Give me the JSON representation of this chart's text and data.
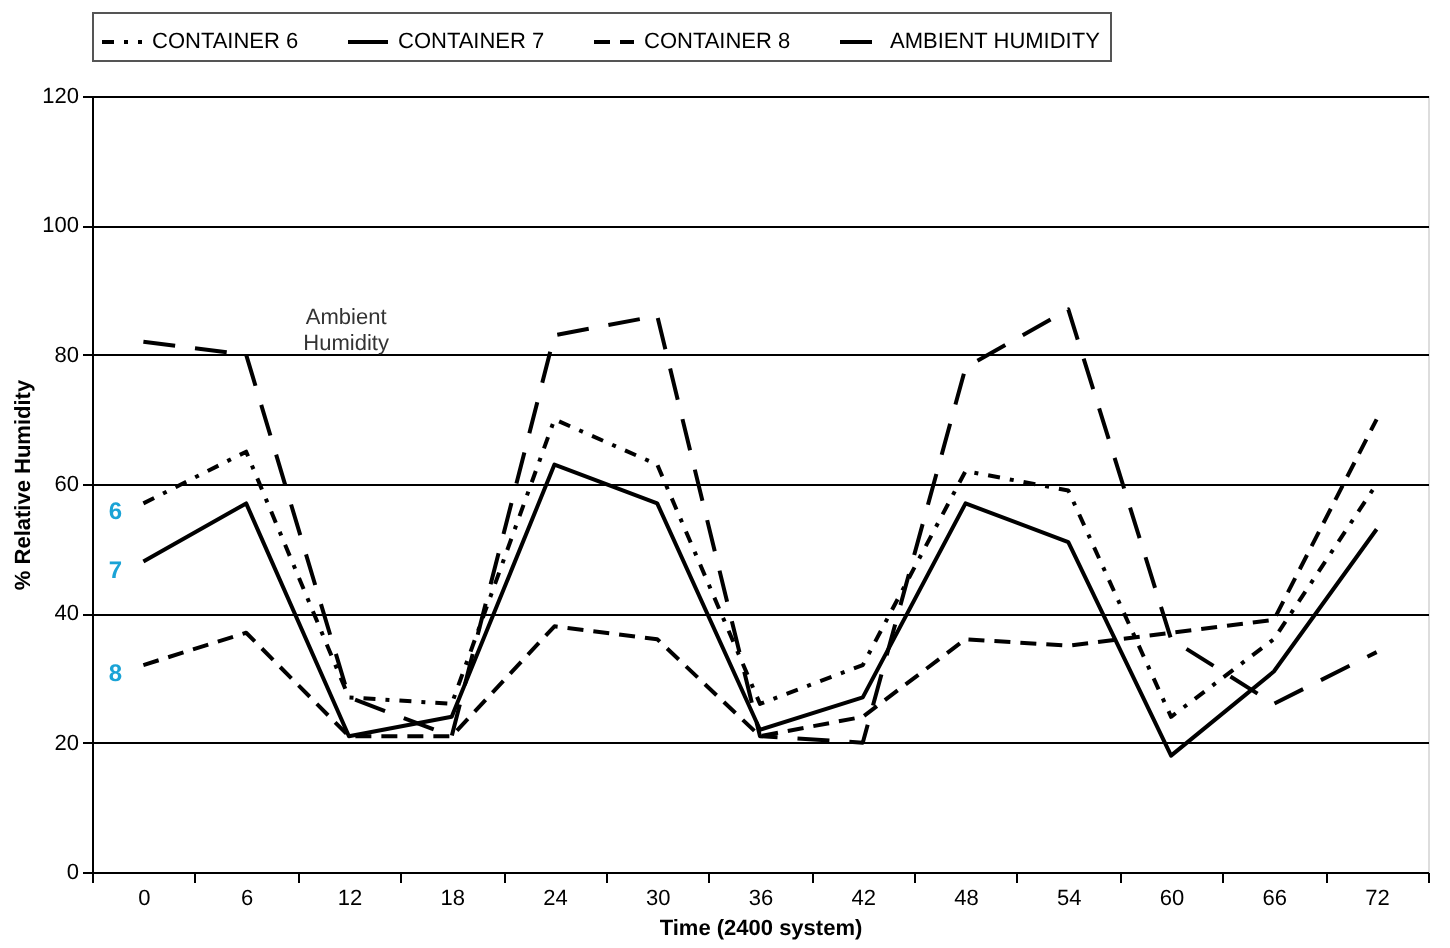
{
  "chart_data": {
    "type": "line",
    "xlabel": "Time (2400 system)",
    "ylabel": "% Relative Humidity",
    "categories": [
      "0",
      "6",
      "12",
      "18",
      "24",
      "30",
      "36",
      "42",
      "48",
      "54",
      "60",
      "66",
      "72"
    ],
    "series": [
      {
        "name": "CONTAINER 6",
        "color": "#000000",
        "line_style": "dotted",
        "values": [
          57,
          65,
          27,
          26,
          70,
          63,
          26,
          32,
          62,
          59,
          24,
          36,
          60
        ]
      },
      {
        "name": "CONTAINER 7",
        "color": "#000000",
        "line_style": "solid",
        "values": [
          48,
          57,
          21,
          24,
          63,
          57,
          22,
          27,
          57,
          51,
          18,
          31,
          53
        ]
      },
      {
        "name": "CONTAINER 8",
        "color": "#000000",
        "line_style": "dashed",
        "values": [
          32,
          37,
          21,
          21,
          38,
          36,
          21,
          24,
          36,
          35,
          37,
          39,
          70
        ]
      },
      {
        "name": "AMBIENT HUMIDITY",
        "color": "#000000",
        "line_style": "dashed",
        "values": [
          82,
          80,
          27,
          21,
          83,
          86,
          21,
          20,
          78,
          87,
          36,
          26,
          34
        ]
      }
    ],
    "annotations": [
      {
        "text": "6",
        "x": "0",
        "y": 57
      },
      {
        "text": "7",
        "x": "0",
        "y": 48
      },
      {
        "text": "8",
        "x": "0",
        "y": 32
      },
      {
        "text": "Ambient Humidity",
        "x": "6",
        "y": 82
      }
    ],
    "ylim": [
      0,
      120
    ],
    "yticks": [
      0,
      20,
      40,
      60,
      80,
      100,
      120
    ],
    "grid": "y",
    "legend": "top",
    "marker": "none"
  }
}
